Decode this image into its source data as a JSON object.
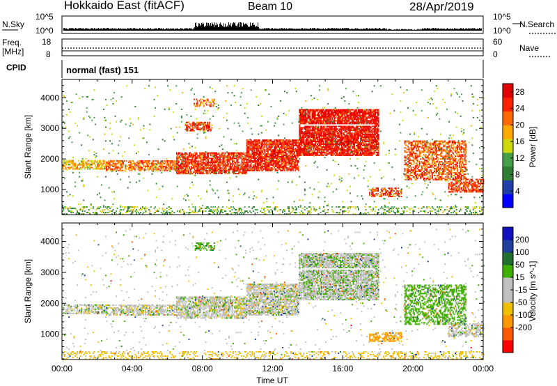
{
  "header": {
    "station": "Hokkaido East (fitACF)",
    "beam": "Beam 10",
    "date": "28/Apr/2019"
  },
  "top_panels": {
    "nsky_label": "N.Sky",
    "nsky_ticks": [
      "10^5",
      "10^0"
    ],
    "freq_label_line1": "Freq.",
    "freq_label_line2": "[MHz]",
    "freq_ticks": [
      "18",
      "8"
    ],
    "nsearch_label": "N.Search",
    "nsearch_ticks": [
      "10^5",
      "10^0"
    ],
    "nave_label": "Nave",
    "nave_ticks": [
      "60",
      "0"
    ],
    "cpid_label": "CPID",
    "cpid_value": "normal (fast) 151"
  },
  "colors": {
    "power_scale": [
      "#0000ff",
      "#1f3fa8",
      "#2e7d32",
      "#43a047",
      "#cdd90b",
      "#ffaa00",
      "#ff6a00",
      "#ff2000",
      "#e00000"
    ],
    "velocity_scale": [
      "#ff0000",
      "#ff5a00",
      "#ff9900",
      "#f0c000",
      "#c0c0c0",
      "#c0c0c0",
      "#40b000",
      "#207030",
      "#2040a0",
      "#1010c0"
    ]
  },
  "chart_data": [
    {
      "type": "heatmap",
      "title": "",
      "xlabel": "",
      "ylabel": "Slant Range [km]",
      "x_ticks": [
        "00:00",
        "04:00",
        "08:00",
        "12:00",
        "16:00",
        "20:00",
        "00:00"
      ],
      "y_ticks": [
        "1000",
        "2000",
        "3000",
        "4000"
      ],
      "xlim_hours": [
        0,
        24
      ],
      "ylim_km": [
        180,
        4600
      ],
      "colorbar": {
        "label": "Power [dB]",
        "ticks": [
          "4",
          "8",
          "12",
          "16",
          "20",
          "24",
          "28"
        ],
        "range": [
          0,
          30
        ]
      },
      "echo_regions": [
        {
          "t0": 0.0,
          "t1": 2.5,
          "r0": 1650,
          "r1": 1950,
          "value": 18,
          "density": 0.55
        },
        {
          "t0": 2.5,
          "t1": 6.5,
          "r0": 1600,
          "r1": 1950,
          "value": 22,
          "density": 0.65
        },
        {
          "t0": 6.5,
          "t1": 10.5,
          "r0": 1500,
          "r1": 2200,
          "value": 25,
          "density": 0.75
        },
        {
          "t0": 10.5,
          "t1": 13.5,
          "r0": 1600,
          "r1": 2600,
          "value": 26,
          "density": 0.8
        },
        {
          "t0": 13.5,
          "t1": 18.0,
          "r0": 2100,
          "r1": 3600,
          "value": 27,
          "density": 0.85
        },
        {
          "t0": 7.0,
          "t1": 8.5,
          "r0": 2900,
          "r1": 3200,
          "value": 24,
          "density": 0.6
        },
        {
          "t0": 7.5,
          "t1": 8.7,
          "r0": 3700,
          "r1": 3950,
          "value": 23,
          "density": 0.5
        },
        {
          "t0": 17.5,
          "t1": 19.3,
          "r0": 750,
          "r1": 1050,
          "value": 24,
          "density": 0.55
        },
        {
          "t0": 19.5,
          "t1": 23.0,
          "r0": 1300,
          "r1": 2600,
          "value": 23,
          "density": 0.55
        },
        {
          "t0": 22.0,
          "t1": 24.0,
          "r0": 900,
          "r1": 1350,
          "value": 24,
          "density": 0.6
        },
        {
          "t0": 0.0,
          "t1": 24.0,
          "r0": 180,
          "r1": 450,
          "value": 12,
          "density": 0.25
        },
        {
          "t0": 0.0,
          "t1": 24.0,
          "r0": 450,
          "r1": 4400,
          "value": 12,
          "density": 0.02
        }
      ]
    },
    {
      "type": "heatmap",
      "title": "",
      "xlabel": "Time UT",
      "ylabel": "Slant Range [km]",
      "x_ticks": [
        "00:00",
        "04:00",
        "08:00",
        "12:00",
        "16:00",
        "20:00",
        "00:00"
      ],
      "y_ticks": [
        "1000",
        "2000",
        "3000",
        "4000"
      ],
      "xlim_hours": [
        0,
        24
      ],
      "ylim_km": [
        180,
        4600
      ],
      "colorbar": {
        "label": "Velocity [m s^-1]",
        "ticks": [
          "200",
          "100",
          "50",
          "15",
          "-15",
          "-50",
          "-100",
          "-200"
        ],
        "range": [
          -250,
          250
        ]
      },
      "echo_regions": [
        {
          "t0": 0.0,
          "t1": 2.5,
          "r0": 1650,
          "r1": 1950,
          "value": 0,
          "density": 0.5
        },
        {
          "t0": 2.5,
          "t1": 6.5,
          "r0": 1600,
          "r1": 1950,
          "value": 0,
          "density": 0.6
        },
        {
          "t0": 6.5,
          "t1": 10.5,
          "r0": 1500,
          "r1": 2200,
          "value": 0,
          "density": 0.7
        },
        {
          "t0": 10.5,
          "t1": 13.5,
          "r0": 1600,
          "r1": 2600,
          "value": 0,
          "density": 0.75
        },
        {
          "t0": 13.5,
          "t1": 18.0,
          "r0": 2100,
          "r1": 3600,
          "value": 5,
          "density": 0.8
        },
        {
          "t0": 7.5,
          "t1": 8.7,
          "r0": 3700,
          "r1": 3950,
          "value": 40,
          "density": 0.5
        },
        {
          "t0": 17.5,
          "t1": 19.3,
          "r0": 750,
          "r1": 1050,
          "value": -60,
          "density": 0.6
        },
        {
          "t0": 19.5,
          "t1": 23.0,
          "r0": 1300,
          "r1": 2600,
          "value": 30,
          "density": 0.5
        },
        {
          "t0": 22.0,
          "t1": 24.0,
          "r0": 900,
          "r1": 1350,
          "value": 0,
          "density": 0.55
        },
        {
          "t0": 0.0,
          "t1": 24.0,
          "r0": 180,
          "r1": 450,
          "value": -30,
          "density": 0.25
        },
        {
          "t0": 0.0,
          "t1": 24.0,
          "r0": 450,
          "r1": 4400,
          "value": 0,
          "density": 0.02
        }
      ]
    }
  ]
}
